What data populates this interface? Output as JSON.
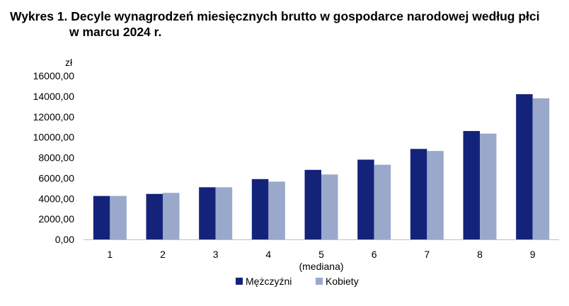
{
  "title_prefix": "Wykres 1.",
  "title_line1": "Decyle wynagrodzeń miesięcznych brutto w gospodarce narodowej według płci",
  "title_line2": "w marcu 2024 r.",
  "chart_data": {
    "type": "bar",
    "title": "Wykres 1. Decyle wynagrodzeń miesięcznych brutto w gospodarce narodowej według płci w marcu 2024 r.",
    "ylabel": "zł",
    "xlabel": "",
    "categories": [
      "1",
      "2",
      "3",
      "4",
      "5",
      "6",
      "7",
      "8",
      "9"
    ],
    "category_sublabels": {
      "5": "(mediana)"
    },
    "yticks": [
      "0,00",
      "2000,00",
      "4000,00",
      "6000,00",
      "8000,00",
      "10000,00",
      "12000,00",
      "14000,00",
      "16000,00"
    ],
    "ylim": [
      0,
      16000
    ],
    "grid": false,
    "legend_position": "bottom",
    "series": [
      {
        "name": "Mężczyźni",
        "color": "#14237a",
        "values": [
          4250,
          4450,
          5100,
          5900,
          6800,
          7800,
          8850,
          10600,
          14200
        ]
      },
      {
        "name": "Kobiety",
        "color": "#9aa8cc",
        "values": [
          4250,
          4550,
          5100,
          5650,
          6350,
          7300,
          8650,
          10350,
          13800
        ]
      }
    ]
  }
}
